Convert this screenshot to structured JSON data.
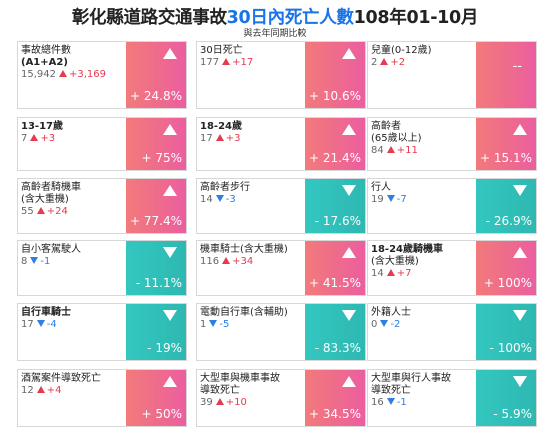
{
  "header": {
    "title_pre": "彰化縣道路交通事故",
    "title_hl": "30日內死亡人數",
    "title_post": "108年01-10月",
    "subtitle": "與去年同期比較"
  },
  "colors": {
    "up": "#ec5ea1",
    "down": "#2eb8b2",
    "up_delta": "#e53a4f",
    "down_delta": "#2f7ee0"
  },
  "cards": [
    {
      "line1": "事故總件數",
      "line2": "(A1+A2)",
      "value": "15,942",
      "dir": "up",
      "delta": "+3,169",
      "pct": "+ 24.8%"
    },
    {
      "line1": "30日死亡",
      "line2": "",
      "value": "177",
      "dir": "up",
      "delta": "+17",
      "pct": "+ 10.6%"
    },
    {
      "line1": "兒童(0-12歲)",
      "line2": "",
      "value": "2",
      "dir": "up",
      "delta": "+2",
      "pct": "--"
    },
    {
      "line1": "13-17歲",
      "line2": "",
      "value": "7",
      "dir": "up",
      "delta": "+3",
      "pct": "+ 75%"
    },
    {
      "line1": "18-24歲",
      "line2": "",
      "value": "17",
      "dir": "up",
      "delta": "+3",
      "pct": "+ 21.4%"
    },
    {
      "line1": "高齡者",
      "line2": "(65歲以上)",
      "value": "84",
      "dir": "up",
      "delta": "+11",
      "pct": "+ 15.1%"
    },
    {
      "line1": "高齡者騎機車",
      "line2": "(含大重機)",
      "value": "55",
      "dir": "up",
      "delta": "+24",
      "pct": "+ 77.4%"
    },
    {
      "line1": "高齡者步行",
      "line2": "",
      "value": "14",
      "dir": "down",
      "delta": "-3",
      "pct": "- 17.6%"
    },
    {
      "line1": "行人",
      "line2": "",
      "value": "19",
      "dir": "down",
      "delta": "-7",
      "pct": "- 26.9%"
    },
    {
      "line1": "自小客駕駛人",
      "line2": "",
      "value": "8",
      "dir": "down",
      "delta": "-1",
      "pct": "- 11.1%"
    },
    {
      "line1": "機車騎士(含大重機)",
      "line2": "",
      "value": "116",
      "dir": "up",
      "delta": "+34",
      "pct": "+ 41.5%"
    },
    {
      "line1": "18-24歲騎機車",
      "line2": "(含大重機)",
      "value": "14",
      "dir": "up",
      "delta": "+7",
      "pct": "+ 100%"
    },
    {
      "line1": "自行車騎士",
      "line2": "",
      "value": "17",
      "dir": "down",
      "delta": "-4",
      "pct": "- 19%"
    },
    {
      "line1": "電動自行車(含輔助)",
      "line2": "",
      "value": "1",
      "dir": "down",
      "delta": "-5",
      "pct": "- 83.3%"
    },
    {
      "line1": "外籍人士",
      "line2": "",
      "value": "0",
      "dir": "down",
      "delta": "-2",
      "pct": "- 100%"
    },
    {
      "line1": "酒駕案件導致死亡",
      "line2": "",
      "value": "12",
      "dir": "up",
      "delta": "+4",
      "pct": "+ 50%"
    },
    {
      "line1": "大型車與機車事故",
      "line2": "導致死亡",
      "value": "39",
      "dir": "up",
      "delta": "+10",
      "pct": "+ 34.5%"
    },
    {
      "line1": "大型車與行人事故",
      "line2": "導致死亡",
      "value": "16",
      "dir": "down",
      "delta": "-1",
      "pct": "- 5.9%"
    }
  ]
}
